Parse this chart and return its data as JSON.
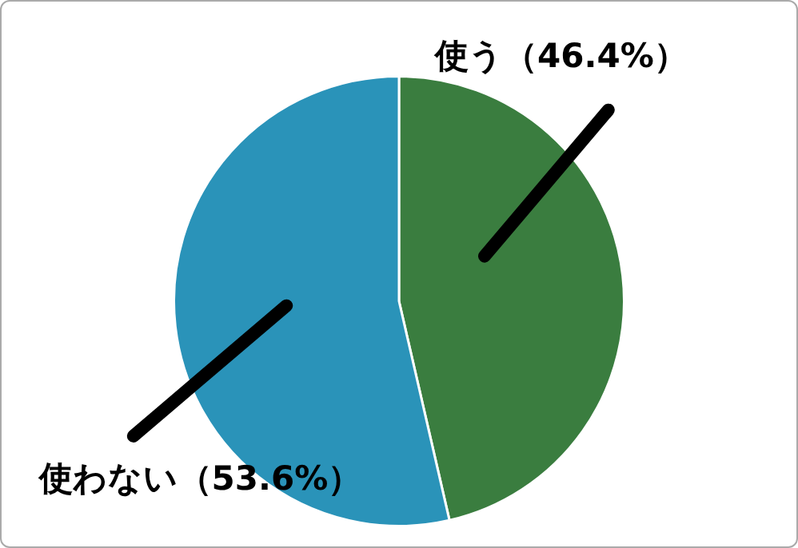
{
  "chart_data": {
    "type": "pie",
    "categories": [
      "使う",
      "使わない"
    ],
    "values": [
      46.4,
      53.6
    ],
    "colors": [
      "#3a7d3f",
      "#2a93b9"
    ],
    "value_labels": [
      "（46.4%）",
      "（53.6%）"
    ],
    "legend": false
  }
}
